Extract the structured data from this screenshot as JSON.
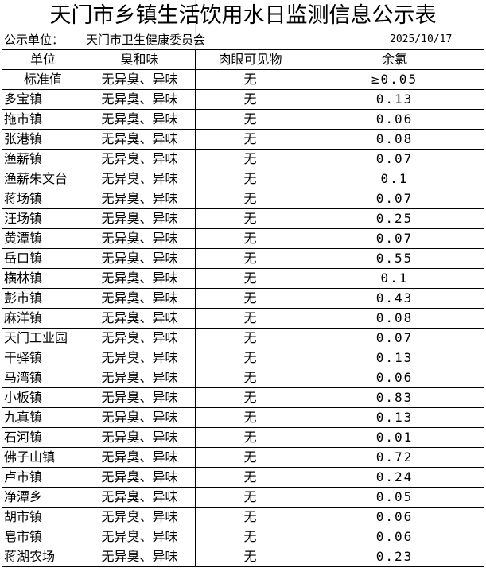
{
  "title": "天门市乡镇生活饮用水日监测信息公示表",
  "info": {
    "label": "公示单位：",
    "unit": "天门市卫生健康委员会",
    "date": "2025/10/17"
  },
  "headers": [
    "单位",
    "臭和味",
    "肉眼可见物",
    "余氯"
  ],
  "standard": {
    "name": "标准值",
    "odor": "无异臭、异味",
    "visible": "无",
    "chlorine": "≥0.05"
  },
  "rows": [
    {
      "name": "多宝镇",
      "odor": "无异臭、异味",
      "visible": "无",
      "chlorine": "0.13"
    },
    {
      "name": "拖市镇",
      "odor": "无异臭、异味",
      "visible": "无",
      "chlorine": "0.06"
    },
    {
      "name": "张港镇",
      "odor": "无异臭、异味",
      "visible": "无",
      "chlorine": "0.08"
    },
    {
      "name": "渔薪镇",
      "odor": "无异臭、异味",
      "visible": "无",
      "chlorine": "0.07"
    },
    {
      "name": "渔薪朱文台",
      "odor": "无异臭、异味",
      "visible": "无",
      "chlorine": "0.1"
    },
    {
      "name": "蒋场镇",
      "odor": "无异臭、异味",
      "visible": "无",
      "chlorine": "0.07"
    },
    {
      "name": "汪场镇",
      "odor": "无异臭、异味",
      "visible": "无",
      "chlorine": "0.25"
    },
    {
      "name": "黄潭镇",
      "odor": "无异臭、异味",
      "visible": "无",
      "chlorine": "0.07"
    },
    {
      "name": "岳口镇",
      "odor": "无异臭、异味",
      "visible": "无",
      "chlorine": "0.55"
    },
    {
      "name": "横林镇",
      "odor": "无异臭、异味",
      "visible": "无",
      "chlorine": "0.1"
    },
    {
      "name": "彭市镇",
      "odor": "无异臭、异味",
      "visible": "无",
      "chlorine": "0.43"
    },
    {
      "name": "麻洋镇",
      "odor": "无异臭、异味",
      "visible": "无",
      "chlorine": "0.08"
    },
    {
      "name": "天门工业园",
      "odor": "无异臭、异味",
      "visible": "无",
      "chlorine": "0.07"
    },
    {
      "name": "干驿镇",
      "odor": "无异臭、异味",
      "visible": "无",
      "chlorine": "0.13"
    },
    {
      "name": "马湾镇",
      "odor": "无异臭、异味",
      "visible": "无",
      "chlorine": "0.06"
    },
    {
      "name": "小板镇",
      "odor": "无异臭、异味",
      "visible": "无",
      "chlorine": "0.83"
    },
    {
      "name": "九真镇",
      "odor": "无异臭、异味",
      "visible": "无",
      "chlorine": "0.13"
    },
    {
      "name": "石河镇",
      "odor": "无异臭、异味",
      "visible": "无",
      "chlorine": "0.01"
    },
    {
      "name": "佛子山镇",
      "odor": "无异臭、异味",
      "visible": "无",
      "chlorine": "0.72"
    },
    {
      "name": "卢市镇",
      "odor": "无异臭、异味",
      "visible": "无",
      "chlorine": "0.24"
    },
    {
      "name": "净潭乡",
      "odor": "无异臭、异味",
      "visible": "无",
      "chlorine": "0.05"
    },
    {
      "name": "胡市镇",
      "odor": "无异臭、异味",
      "visible": "无",
      "chlorine": "0.06"
    },
    {
      "name": "皂市镇",
      "odor": "无异臭、异味",
      "visible": "无",
      "chlorine": "0.06"
    },
    {
      "name": "蒋湖农场",
      "odor": "无异臭、异味",
      "visible": "无",
      "chlorine": "0.23"
    }
  ]
}
